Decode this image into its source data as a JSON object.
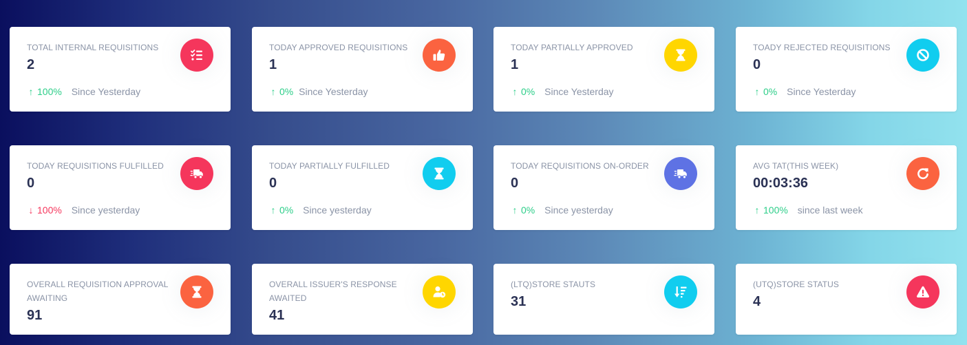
{
  "cards": [
    {
      "title": "TOTAL INTERNAL REQUISITIONS",
      "value": "2",
      "change": "100%",
      "direction": "up",
      "since": "Since Yesterday",
      "icon": "checklist-icon",
      "color": "#f5365c"
    },
    {
      "title": "TODAY APPROVED REQUISITIONS",
      "value": "1",
      "change": "0%",
      "direction": "up",
      "since": "Since Yesterday",
      "icon": "thumbs-up-icon",
      "color": "#fb6340"
    },
    {
      "title": "TODAY PARTIALLY APPROVED",
      "value": "1",
      "change": "0%",
      "direction": "up",
      "since": "Since Yesterday",
      "icon": "hourglass-icon",
      "color": "#ffd600"
    },
    {
      "title": "TOADY REJECTED REQUISITIONS",
      "value": "0",
      "change": "0%",
      "direction": "up",
      "since": "Since Yesterday",
      "icon": "ban-icon",
      "color": "#11cdef"
    },
    {
      "title": "TODAY REQUISITIONS FULFILLED",
      "value": "0",
      "change": "100%",
      "direction": "down",
      "since": "Since yesterday",
      "icon": "shipping-truck-icon",
      "color": "#f5365c"
    },
    {
      "title": "TODAY PARTIALLY FULFILLED",
      "value": "0",
      "change": "0%",
      "direction": "up",
      "since": "Since yesterday",
      "icon": "hourglass-icon",
      "color": "#11cdef"
    },
    {
      "title": "TODAY REQUISITIONS ON-ORDER",
      "value": "0",
      "change": "0%",
      "direction": "up",
      "since": "Since yesterday",
      "icon": "shipping-truck-icon",
      "color": "#5e72e4"
    },
    {
      "title": "AVG TAT(THIS WEEK)",
      "value": "00:03:36",
      "change": "100%",
      "direction": "up",
      "since": "since last week",
      "icon": "refresh-icon",
      "color": "#fb6340"
    },
    {
      "title": "OVERALL REQUISITION APPROVAL AWAITING",
      "value": "91",
      "icon": "hourglass-icon",
      "color": "#fb6340"
    },
    {
      "title": "OVERALL ISSUER'S RESPONSE AWAITED",
      "value": "41",
      "icon": "user-clock-icon",
      "color": "#ffd600"
    },
    {
      "title": "(LTQ)STORE STAUTS",
      "value": "31",
      "icon": "sort-amount-down-icon",
      "color": "#11cdef"
    },
    {
      "title": "(UTQ)STORE STATUS",
      "value": "4",
      "icon": "warning-icon",
      "color": "#f5365c"
    }
  ]
}
